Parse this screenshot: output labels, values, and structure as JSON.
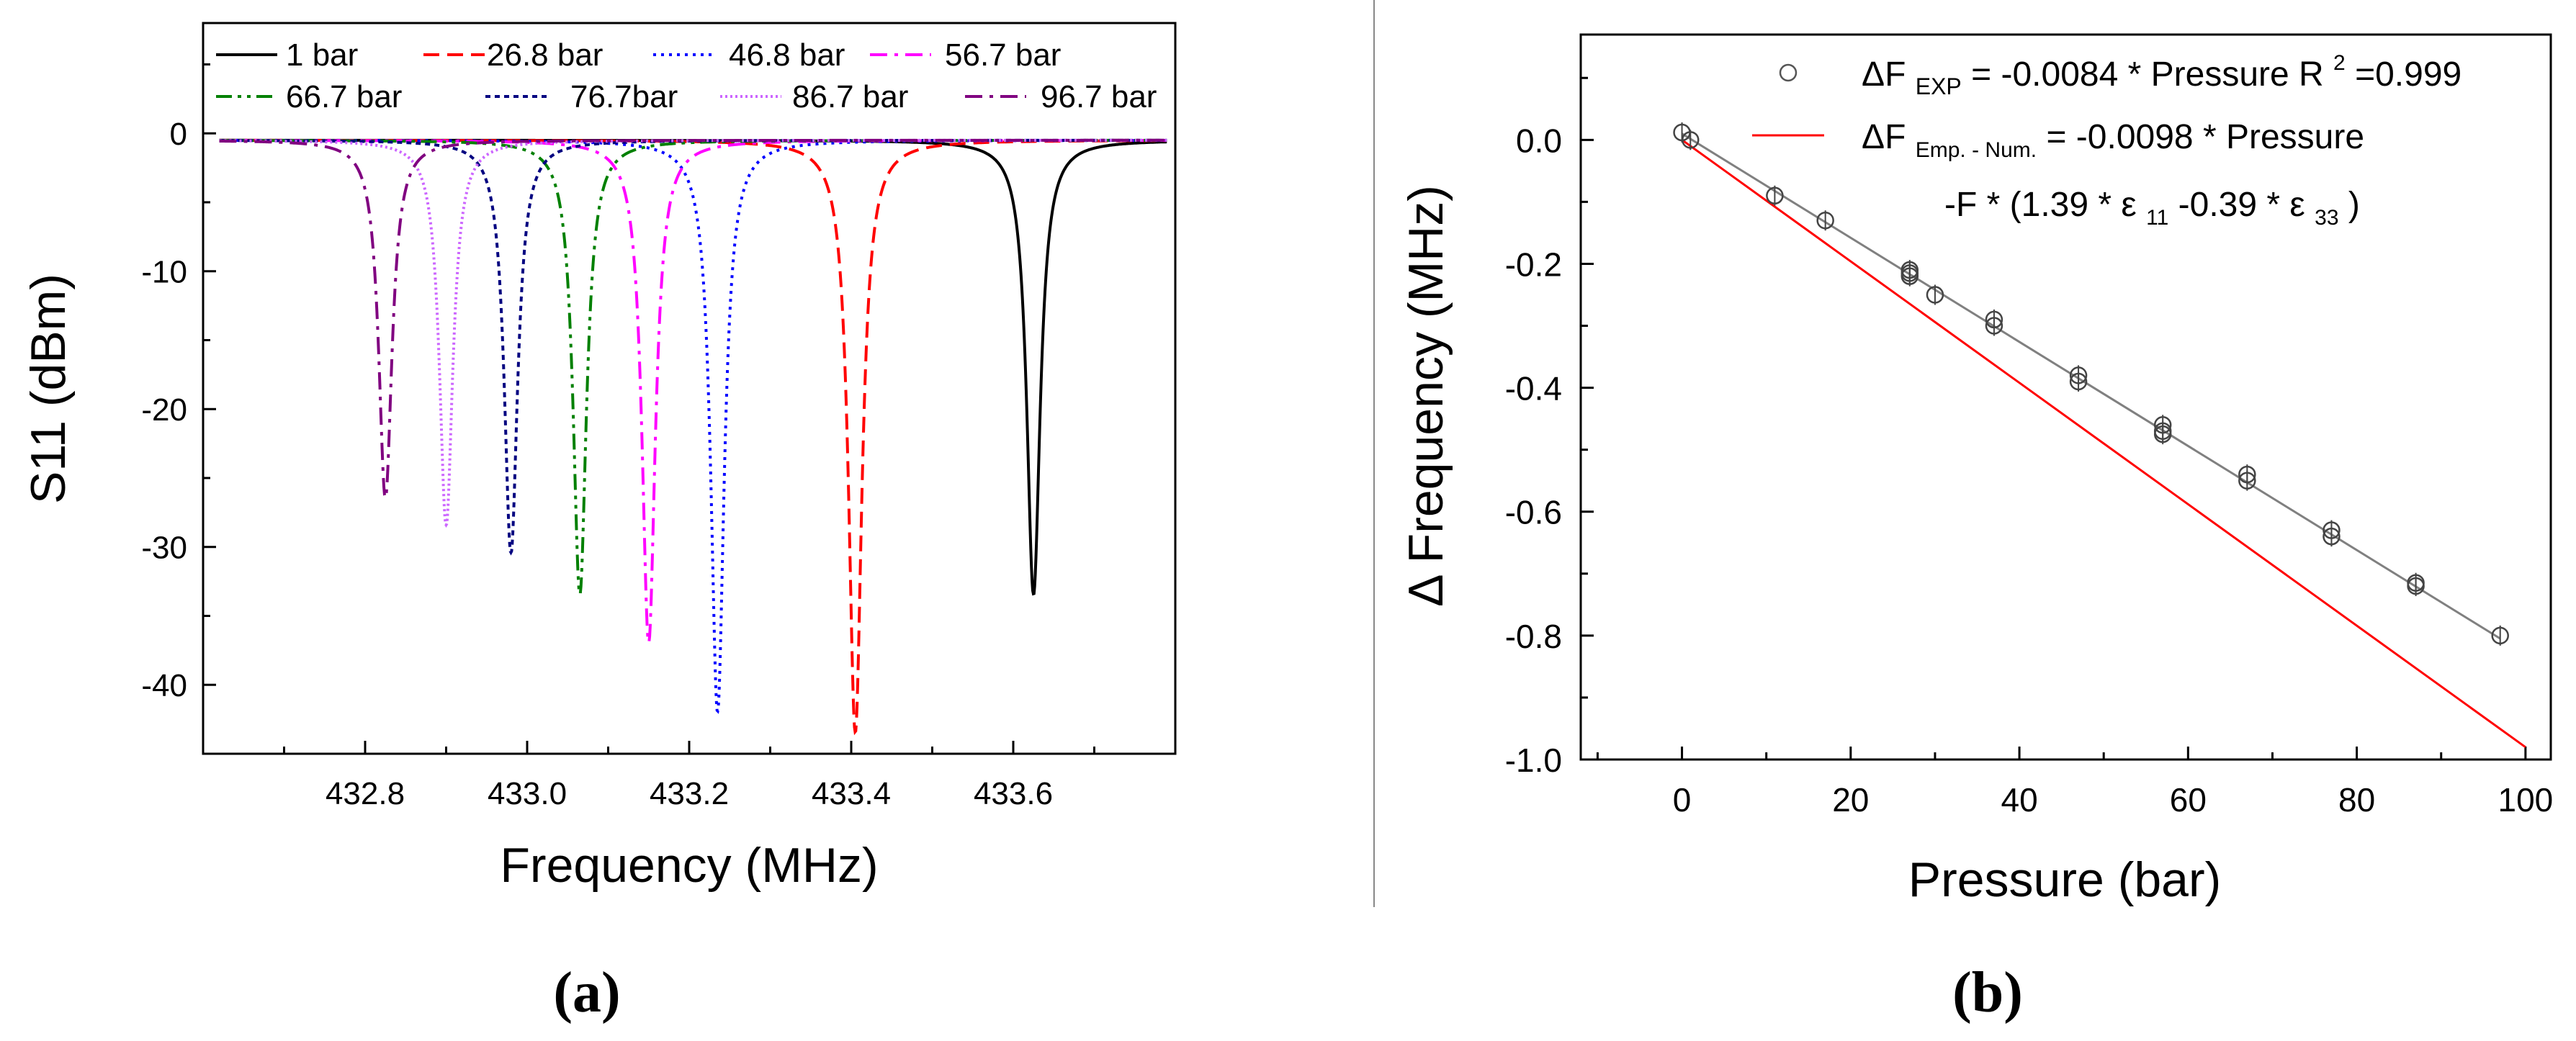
{
  "chart_data": [
    {
      "panel_label": "(a)",
      "type": "line",
      "xlabel": "Frequency (MHz)",
      "ylabel": "S11 (dBm)",
      "xlim": [
        432.6,
        433.8
      ],
      "ylim": [
        -45,
        8
      ],
      "x_ticks": [
        "432.8",
        "433.0",
        "433.2",
        "433.4",
        "433.6"
      ],
      "y_ticks": [
        "0",
        "-10",
        "-20",
        "-30",
        "-40"
      ],
      "legend_position": "top (inside plot, 4 columns)",
      "series": [
        {
          "name": "1 bar",
          "color": "#000000",
          "dash": "solid",
          "resonance_mhz": 433.625,
          "min_dbm": -33.5
        },
        {
          "name": "26.8 bar",
          "color": "#ff0000",
          "dash": "dashed",
          "resonance_mhz": 433.405,
          "min_dbm": -43.5
        },
        {
          "name": "46.8 bar",
          "color": "#0000ff",
          "dash": "dotted",
          "resonance_mhz": 433.235,
          "min_dbm": -42
        },
        {
          "name": "56.7 bar",
          "color": "#ff00ff",
          "dash": "dash-dot",
          "resonance_mhz": 433.15,
          "min_dbm": -37
        },
        {
          "name": "66.7 bar",
          "color": "#008000",
          "dash": "dash-dot-dot",
          "resonance_mhz": 433.065,
          "min_dbm": -33.5
        },
        {
          "name": "76.7bar",
          "color": "#000080",
          "dash": "short-dot",
          "resonance_mhz": 432.98,
          "min_dbm": -30.5
        },
        {
          "name": "86.7 bar",
          "color": "#cc66ff",
          "dash": "fine-dot",
          "resonance_mhz": 432.9,
          "min_dbm": -28.5
        },
        {
          "name": "96.7 bar",
          "color": "#800080",
          "dash": "dash-dot",
          "resonance_mhz": 432.825,
          "min_dbm": -26.5
        }
      ]
    },
    {
      "panel_label": "(b)",
      "type": "scatter",
      "xlabel": "Pressure (bar)",
      "ylabel": "Δ Frequency (MHz)",
      "xlim": [
        -12,
        103
      ],
      "ylim": [
        -1.0,
        0.17
      ],
      "x_ticks": [
        "0",
        "20",
        "40",
        "60",
        "80",
        "100"
      ],
      "y_ticks": [
        "0.0",
        "-0.2",
        "-0.4",
        "-0.6",
        "-0.8",
        "-1.0"
      ],
      "legend_position": "top-right",
      "legend": {
        "exp": {
          "delta": "ΔF",
          "sub": "EXP",
          "text": " = -0.0084 * Pressure R",
          "sup": "2",
          "tail": "=0.999"
        },
        "num": {
          "delta": "ΔF",
          "sub": "Emp. - Num.",
          "text": " = -0.0098 * Pressure"
        },
        "num2": {
          "a": "-F * (1.39 * ε",
          "s1": "11",
          "b": " -0.39 * ε",
          "s2": "33",
          "c": ")"
        }
      },
      "experimental_points": [
        {
          "x": 0,
          "y": 0.012
        },
        {
          "x": 1,
          "y": 0.0
        },
        {
          "x": 11,
          "y": -0.09
        },
        {
          "x": 17,
          "y": -0.13
        },
        {
          "x": 27,
          "y": -0.21
        },
        {
          "x": 27,
          "y": -0.215
        },
        {
          "x": 27,
          "y": -0.22
        },
        {
          "x": 30,
          "y": -0.25
        },
        {
          "x": 37,
          "y": -0.29
        },
        {
          "x": 37,
          "y": -0.3
        },
        {
          "x": 47,
          "y": -0.38
        },
        {
          "x": 47,
          "y": -0.39
        },
        {
          "x": 57,
          "y": -0.46
        },
        {
          "x": 57,
          "y": -0.47
        },
        {
          "x": 57,
          "y": -0.475
        },
        {
          "x": 67,
          "y": -0.54
        },
        {
          "x": 67,
          "y": -0.55
        },
        {
          "x": 77,
          "y": -0.63
        },
        {
          "x": 77,
          "y": -0.64
        },
        {
          "x": 87,
          "y": -0.715
        },
        {
          "x": 87,
          "y": -0.72
        },
        {
          "x": 97,
          "y": -0.8
        }
      ],
      "fit_exp": {
        "slope": -0.0084,
        "intercept": 0.01,
        "x_range": [
          0,
          97
        ],
        "color": "#808080"
      },
      "fit_num": {
        "slope": -0.0098,
        "intercept": 0.0,
        "x_range": [
          0,
          100
        ],
        "color": "#ff0000"
      }
    }
  ]
}
